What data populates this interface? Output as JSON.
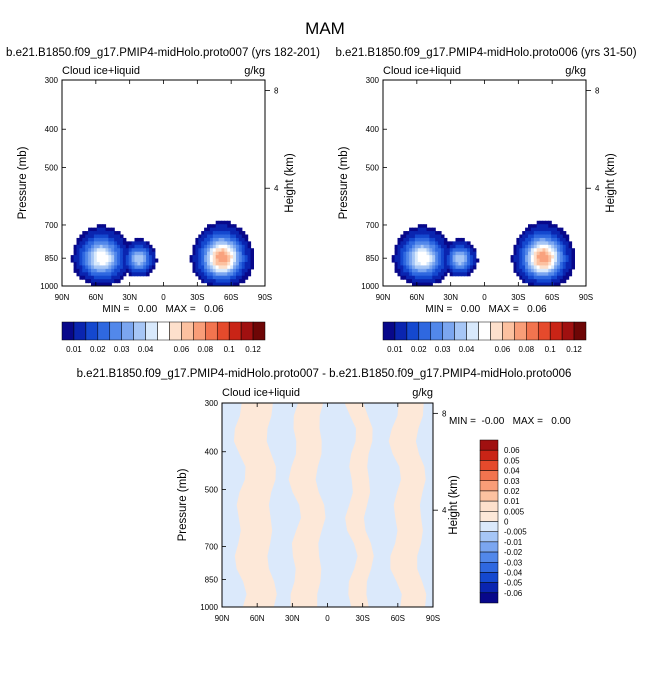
{
  "page_title": "MAM",
  "chart_data": [
    {
      "type": "heatmap",
      "panel_title": "b.e21.B1850.f09_g17.PMIP4-midHolo.proto007 (yrs 182-201)",
      "left_label": "Cloud ice+liquid",
      "right_label": "g/kg",
      "ylabel": "Pressure (mb)",
      "y2label": "Height (km)",
      "x_ticks": [
        "90N",
        "60N",
        "30N",
        "0",
        "30S",
        "60S",
        "90S"
      ],
      "x_values": [
        90,
        60,
        30,
        0,
        -30,
        -60,
        -90
      ],
      "y_ticks": [
        "300",
        "400",
        "500",
        "700",
        "850",
        "1000"
      ],
      "y_values": [
        300,
        400,
        500,
        700,
        850,
        1000
      ],
      "y2_ticks": [
        "8",
        "4"
      ],
      "y2_values": [
        8,
        4
      ],
      "ylim": [
        1000,
        300
      ],
      "min_max_text": "MIN =   0.00   MAX =   0.06",
      "blobs": [
        {
          "lat": 55,
          "p": 850,
          "peak": 0.045,
          "wx": 16,
          "wp": 90
        },
        {
          "lat": 22,
          "p": 855,
          "peak": 0.035,
          "wx": 10,
          "wp": 60
        },
        {
          "lat": -52,
          "p": 850,
          "peak": 0.06,
          "wx": 16,
          "wp": 95
        }
      ]
    },
    {
      "type": "heatmap",
      "panel_title": "b.e21.B1850.f09_g17.PMIP4-midHolo.proto006 (yrs 31-50)",
      "left_label": "Cloud ice+liquid",
      "right_label": "g/kg",
      "ylabel": "Pressure (mb)",
      "y2label": "Height (km)",
      "x_ticks": [
        "90N",
        "60N",
        "30N",
        "0",
        "30S",
        "60S",
        "90S"
      ],
      "x_values": [
        90,
        60,
        30,
        0,
        -30,
        -60,
        -90
      ],
      "y_ticks": [
        "300",
        "400",
        "500",
        "700",
        "850",
        "1000"
      ],
      "y_values": [
        300,
        400,
        500,
        700,
        850,
        1000
      ],
      "y2_ticks": [
        "8",
        "4"
      ],
      "y2_values": [
        8,
        4
      ],
      "ylim": [
        1000,
        300
      ],
      "min_max_text": "MIN =   0.00   MAX =   0.06",
      "blobs": [
        {
          "lat": 55,
          "p": 850,
          "peak": 0.045,
          "wx": 16,
          "wp": 90
        },
        {
          "lat": 22,
          "p": 855,
          "peak": 0.035,
          "wx": 10,
          "wp": 60
        },
        {
          "lat": -52,
          "p": 850,
          "peak": 0.06,
          "wx": 16,
          "wp": 95
        }
      ]
    },
    {
      "type": "heatmap",
      "panel_title": "b.e21.B1850.f09_g17.PMIP4-midHolo.proto007 - b.e21.B1850.f09_g17.PMIP4-midHolo.proto006",
      "left_label": "Cloud ice+liquid",
      "right_label": "g/kg",
      "ylabel": "Pressure (mb)",
      "y2label": "Height (km)",
      "x_ticks": [
        "90N",
        "60N",
        "30N",
        "0",
        "30S",
        "60S",
        "90S"
      ],
      "x_values": [
        90,
        60,
        30,
        0,
        -30,
        -60,
        -90
      ],
      "y_ticks": [
        "300",
        "400",
        "500",
        "700",
        "850",
        "1000"
      ],
      "y_values": [
        300,
        400,
        500,
        700,
        850,
        1000
      ],
      "y2_ticks": [
        "8",
        "4"
      ],
      "y2_values": [
        8,
        4
      ],
      "ylim": [
        1000,
        300
      ],
      "min_max_text": "MIN =  -0.00   MAX =   0.00",
      "diff_bands_lat": [
        {
          "from": 90,
          "to": 75,
          "sign": "neg"
        },
        {
          "from": 75,
          "to": 48,
          "sign": "pos"
        },
        {
          "from": 48,
          "to": 28,
          "sign": "neg"
        },
        {
          "from": 28,
          "to": 6,
          "sign": "pos"
        },
        {
          "from": 6,
          "to": -20,
          "sign": "neg"
        },
        {
          "from": -20,
          "to": -35,
          "sign": "pos"
        },
        {
          "from": -35,
          "to": -58,
          "sign": "neg"
        },
        {
          "from": -58,
          "to": -80,
          "sign": "pos"
        },
        {
          "from": -80,
          "to": -90,
          "sign": "neg"
        }
      ]
    }
  ],
  "colorbars": {
    "full": {
      "labels": [
        "0.01",
        "0.02",
        "0.03",
        "0.04",
        "0.06",
        "0.08",
        "0.1",
        "0.12"
      ],
      "colors": [
        "#08088a",
        "#0a25b0",
        "#1448cf",
        "#2f68e0",
        "#5288ea",
        "#7ba6f0",
        "#a6c6f6",
        "#d8e9fc",
        "#ffffff",
        "#fde0cc",
        "#fcc1a0",
        "#f99d78",
        "#f2744f",
        "#e54a2c",
        "#c92416",
        "#a01010",
        "#6e0606"
      ]
    },
    "diff": {
      "labels": [
        "0.06",
        "0.05",
        "0.04",
        "0.03",
        "0.02",
        "0.01",
        "0.005",
        "0",
        "-0.005",
        "-0.01",
        "-0.02",
        "-0.03",
        "-0.04",
        "-0.05",
        "-0.06"
      ],
      "colors": [
        "#a01010",
        "#c92416",
        "#e54a2c",
        "#f2744f",
        "#f99d78",
        "#fcc1a0",
        "#fde0cc",
        "#fde8d8",
        "#dbe9fb",
        "#a6c6f6",
        "#7ba6f0",
        "#5288ea",
        "#2f68e0",
        "#1448cf",
        "#0a25b0",
        "#08088a"
      ]
    }
  }
}
